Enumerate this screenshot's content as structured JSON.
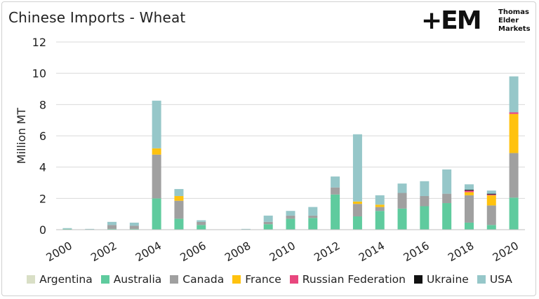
{
  "title": "Chinese Imports - Wheat",
  "logo": {
    "mark": "+EM",
    "lines": [
      "Thomas",
      "Elder",
      "Markets"
    ]
  },
  "chart_data": {
    "type": "bar",
    "stacked": true,
    "title": "Chinese Imports - Wheat",
    "xlabel": "",
    "ylabel": "Million MT",
    "ylim": [
      0,
      12
    ],
    "yticks": [
      0,
      2,
      4,
      6,
      8,
      10,
      12
    ],
    "grid": true,
    "legend_position": "bottom",
    "categories": [
      "2000",
      "2001",
      "2002",
      "2003",
      "2004",
      "2005",
      "2006",
      "2007",
      "2008",
      "2009",
      "2010",
      "2011",
      "2012",
      "2013",
      "2014",
      "2015",
      "2016",
      "2017",
      "2018",
      "2019",
      "2020"
    ],
    "xtick_labels": [
      "2000",
      "2002",
      "2004",
      "2006",
      "2008",
      "2010",
      "2012",
      "2014",
      "2016",
      "2018",
      "2020"
    ],
    "series": [
      {
        "name": "Argentina",
        "color": "#d9dfc6",
        "values": [
          0,
          0,
          0,
          0,
          0,
          0,
          0,
          0,
          0,
          0,
          0,
          0,
          0,
          0,
          0,
          0,
          0,
          0,
          0,
          0,
          0
        ]
      },
      {
        "name": "Australia",
        "color": "#5fcb9e",
        "values": [
          0.05,
          0,
          0.05,
          0.05,
          2.0,
          0.7,
          0.3,
          0,
          0,
          0.35,
          0.7,
          0.75,
          2.25,
          0.85,
          1.2,
          1.35,
          1.5,
          1.7,
          0.45,
          0.3,
          2.05
        ]
      },
      {
        "name": "Canada",
        "color": "#a0a0a0",
        "values": [
          0,
          0,
          0.25,
          0.2,
          2.8,
          1.15,
          0.2,
          0,
          0,
          0.15,
          0.2,
          0.15,
          0.45,
          0.8,
          0.25,
          1.0,
          0.65,
          0.6,
          1.75,
          1.25,
          2.85
        ]
      },
      {
        "name": "France",
        "color": "#ffc20e",
        "values": [
          0,
          0,
          0,
          0,
          0.4,
          0.3,
          0,
          0,
          0,
          0,
          0,
          0,
          0,
          0.15,
          0.15,
          0,
          0,
          0,
          0.2,
          0.65,
          2.5
        ]
      },
      {
        "name": "Russian Federation",
        "color": "#e8477e",
        "values": [
          0,
          0,
          0,
          0,
          0,
          0,
          0,
          0,
          0,
          0,
          0,
          0,
          0,
          0,
          0,
          0,
          0,
          0,
          0.1,
          0.05,
          0.1
        ]
      },
      {
        "name": "Ukraine",
        "color": "#111111",
        "values": [
          0,
          0,
          0,
          0,
          0,
          0,
          0,
          0,
          0,
          0,
          0,
          0,
          0,
          0,
          0,
          0,
          0,
          0,
          0.05,
          0.05,
          0
        ]
      },
      {
        "name": "USA",
        "color": "#96c7c9",
        "values": [
          0.05,
          0.05,
          0.2,
          0.2,
          3.05,
          0.45,
          0.1,
          0,
          0.05,
          0.4,
          0.3,
          0.55,
          0.7,
          4.3,
          0.6,
          0.6,
          0.95,
          1.55,
          0.35,
          0.2,
          2.3
        ]
      }
    ]
  }
}
